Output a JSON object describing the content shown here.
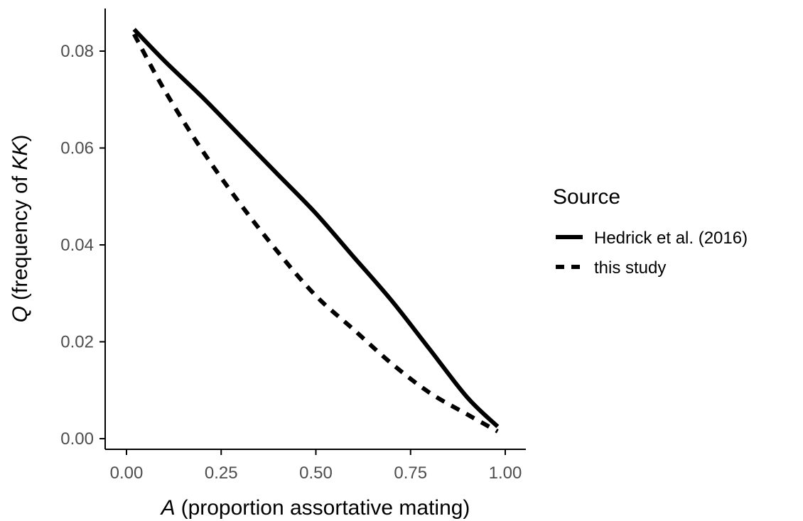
{
  "chart_data": {
    "type": "line",
    "xlabel_var": "A",
    "xlabel_rest": "(proportion assortative mating)",
    "ylabel_var": "Q",
    "ylabel_pre": "(frequency of ",
    "ylabel_var2": "KK",
    "ylabel_post": ")",
    "xlim": [
      0,
      1
    ],
    "ylim": [
      0,
      0.085
    ],
    "x_ticks": [
      0.0,
      0.25,
      0.5,
      0.75,
      1.0
    ],
    "x_tick_labels": [
      "0.00",
      "0.25",
      "0.50",
      "0.75",
      "1.00"
    ],
    "y_ticks": [
      0.0,
      0.02,
      0.04,
      0.06,
      0.08
    ],
    "y_tick_labels": [
      "0.00",
      "0.02",
      "0.04",
      "0.06",
      "0.08"
    ],
    "grid": false,
    "legend": {
      "title": "Source",
      "position": "right"
    },
    "series": [
      {
        "name": "Hedrick et al. (2016)",
        "linestyle": "solid",
        "color": "#000000",
        "x": [
          0.02,
          0.1,
          0.2,
          0.3,
          0.4,
          0.5,
          0.6,
          0.7,
          0.8,
          0.9,
          0.98
        ],
        "y": [
          0.0845,
          0.078,
          0.0705,
          0.0625,
          0.0545,
          0.0465,
          0.0375,
          0.0285,
          0.0185,
          0.0085,
          0.0025
        ]
      },
      {
        "name": "this study",
        "linestyle": "dashed",
        "color": "#000000",
        "x": [
          0.02,
          0.1,
          0.2,
          0.3,
          0.4,
          0.5,
          0.6,
          0.7,
          0.8,
          0.9,
          0.98
        ],
        "y": [
          0.0835,
          0.072,
          0.0595,
          0.0485,
          0.0385,
          0.0295,
          0.0225,
          0.0155,
          0.0095,
          0.005,
          0.0015
        ]
      }
    ]
  }
}
